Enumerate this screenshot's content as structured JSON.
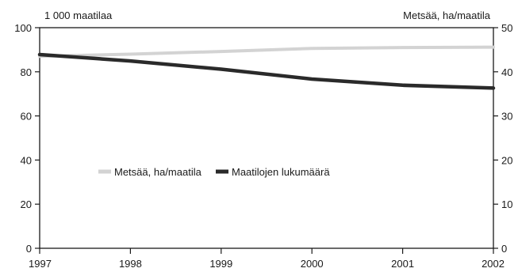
{
  "chart_data": {
    "type": "line",
    "x": [
      1997,
      1998,
      1999,
      2000,
      2001,
      2002
    ],
    "left_axis": {
      "label": "1 000 maatilaa",
      "ylim": [
        0,
        100
      ],
      "ticks": [
        0,
        20,
        40,
        60,
        80,
        100
      ]
    },
    "right_axis": {
      "label": "Metsää, ha/maatila",
      "ylim": [
        0,
        50
      ],
      "ticks": [
        0,
        10,
        20,
        30,
        40,
        50
      ]
    },
    "x_ticks": [
      "1997",
      "1998",
      "1999",
      "2000",
      "2001",
      "2002"
    ],
    "series": [
      {
        "name": "Metsää, ha/maatila",
        "axis": "right",
        "color": "#d3d3d3",
        "values": [
          43.5,
          44.0,
          44.6,
          45.3,
          45.5,
          45.6
        ]
      },
      {
        "name": "Maatilojen lukumäärä",
        "axis": "left",
        "color": "#2a2a2a",
        "values": [
          87.8,
          84.9,
          81.2,
          76.7,
          73.9,
          72.6
        ]
      }
    ],
    "legend_position": "center-left",
    "grid": false
  }
}
